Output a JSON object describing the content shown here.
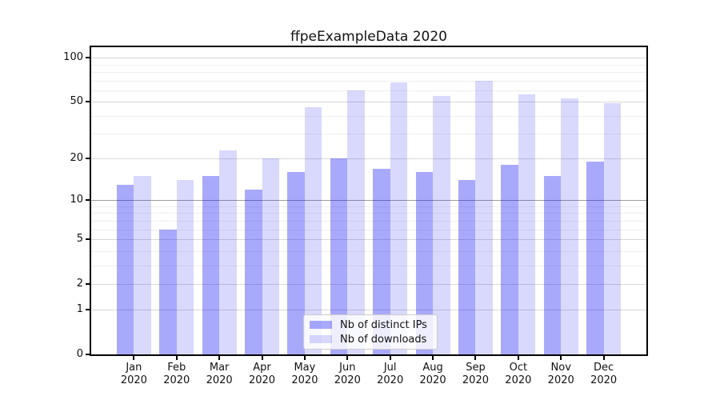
{
  "title": "ffpeExampleData 2020",
  "colors": {
    "distinct_ips_bar": "rgba(10,10,245,0.35)",
    "downloads_bar": "rgba(10,10,245,0.155)",
    "grid_major": "#d8d8d8",
    "grid_minor": "#efefef",
    "grid_emphasis_at_10": "#9e9e9e",
    "spine": "#000000",
    "background": "#ffffff"
  },
  "legend": {
    "position": "lower-center-inside",
    "items": [
      {
        "label": "Nb of distinct IPs",
        "series_key": "distinct_ips"
      },
      {
        "label": "Nb of downloads",
        "series_key": "downloads"
      }
    ]
  },
  "chart_data": {
    "type": "bar",
    "title": "ffpeExampleData 2020",
    "categories": [
      "Jan",
      "Feb",
      "Mar",
      "Apr",
      "May",
      "Jun",
      "Jul",
      "Aug",
      "Sep",
      "Oct",
      "Nov",
      "Dec"
    ],
    "year_label": "2020",
    "series": [
      {
        "name": "Nb of distinct IPs",
        "key": "distinct_ips",
        "values": [
          13,
          6,
          15,
          12,
          16,
          20,
          17,
          16,
          14,
          18,
          15,
          19
        ]
      },
      {
        "name": "Nb of downloads",
        "key": "downloads",
        "values": [
          15,
          14,
          23,
          20,
          46,
          60,
          68,
          55,
          70,
          56,
          53,
          49
        ]
      }
    ],
    "xlabel": "",
    "ylabel": "",
    "y_scale": "log10(value+1)",
    "y_ticks": [
      0,
      1,
      2,
      5,
      10,
      20,
      50,
      100
    ],
    "y_minor_ticks": [
      3,
      4,
      6,
      7,
      8,
      9,
      30,
      40,
      60,
      70,
      80,
      90
    ],
    "ylim": [
      0,
      120
    ],
    "grid": true,
    "grid_orientation": "horizontal"
  }
}
